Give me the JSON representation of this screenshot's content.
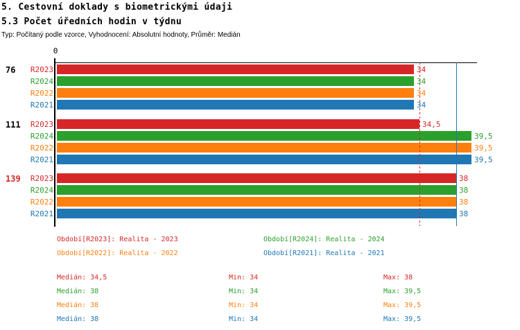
{
  "header": {
    "title1": "5. Cestovní doklady s biometrickými údaji",
    "title2": "5.3 Počet úředních hodin v týdnu",
    "subtitle": "Typ: Počítaný podle vzorce, Vyhodnocení: Absolutní hodnoty, Průměr: Medián"
  },
  "colors": {
    "red": "#d62728",
    "green": "#2ca02c",
    "orange": "#ff7f0e",
    "blue": "#1f77b4",
    "black": "#000000"
  },
  "chart_data": {
    "type": "bar",
    "orientation": "horizontal",
    "x_axis": {
      "origin_tick": "0",
      "xlim": [
        0,
        40
      ],
      "grid": false
    },
    "categories": [
      "76",
      "111",
      "139"
    ],
    "series_order": [
      "R2023",
      "R2024",
      "R2022",
      "R2021"
    ],
    "groups": [
      {
        "label": "76",
        "label_color": "black",
        "bars": [
          {
            "series": "R2023",
            "color": "red",
            "value": 34,
            "display": "34"
          },
          {
            "series": "R2024",
            "color": "green",
            "value": 34,
            "display": "34"
          },
          {
            "series": "R2022",
            "color": "orange",
            "value": 34,
            "display": "34"
          },
          {
            "series": "R2021",
            "color": "blue",
            "value": 34,
            "display": "34"
          }
        ]
      },
      {
        "label": "111",
        "label_color": "black",
        "bars": [
          {
            "series": "R2023",
            "color": "red",
            "value": 34.5,
            "display": "34,5"
          },
          {
            "series": "R2024",
            "color": "green",
            "value": 39.5,
            "display": "39,5"
          },
          {
            "series": "R2022",
            "color": "orange",
            "value": 39.5,
            "display": "39,5"
          },
          {
            "series": "R2021",
            "color": "blue",
            "value": 39.5,
            "display": "39,5"
          }
        ]
      },
      {
        "label": "139",
        "label_color": "red",
        "bars": [
          {
            "series": "R2023",
            "color": "red",
            "value": 38,
            "display": "38"
          },
          {
            "series": "R2024",
            "color": "green",
            "value": 38,
            "display": "38"
          },
          {
            "series": "R2022",
            "color": "orange",
            "value": 38,
            "display": "38"
          },
          {
            "series": "R2021",
            "color": "blue",
            "value": 38,
            "display": "38"
          }
        ]
      }
    ],
    "ref_lines": [
      {
        "value": 34.5,
        "color": "red",
        "style": "dashed"
      },
      {
        "value": 38,
        "color": "blue",
        "style": "solid"
      }
    ],
    "legend": [
      {
        "label": "Období[R2023]: Realita - 2023",
        "color": "red"
      },
      {
        "label": "Období[R2024]: Realita - 2024",
        "color": "green"
      },
      {
        "label": "Období[R2022]: Realita - 2022",
        "color": "orange"
      },
      {
        "label": "Období[R2021]: Realita - 2021",
        "color": "blue"
      }
    ],
    "stats_labels": {
      "median": "Medián",
      "min": "Min",
      "max": "Max"
    },
    "stats": [
      {
        "color": "red",
        "median": "34,5",
        "min": "34",
        "max": "38"
      },
      {
        "color": "green",
        "median": "38",
        "min": "34",
        "max": "39,5"
      },
      {
        "color": "orange",
        "median": "38",
        "min": "34",
        "max": "39,5"
      },
      {
        "color": "blue",
        "median": "38",
        "min": "34",
        "max": "39,5"
      }
    ]
  }
}
